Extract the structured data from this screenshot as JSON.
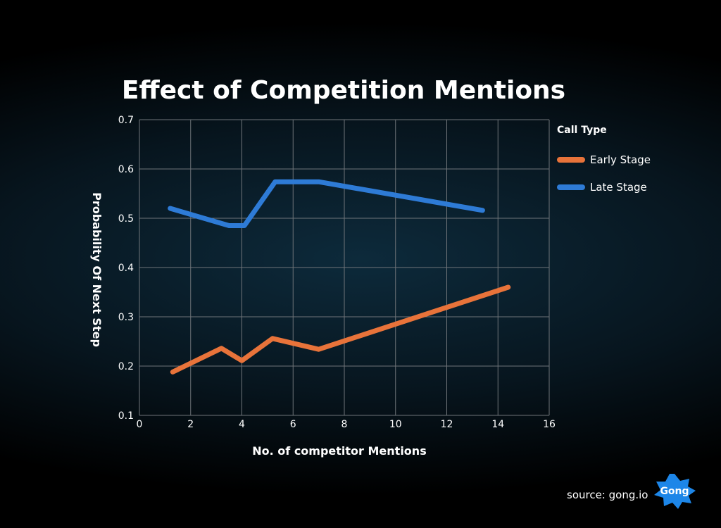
{
  "chart_data": {
    "type": "line",
    "title": "Effect of Competition Mentions",
    "xlabel": "No. of competitor Mentions",
    "ylabel": "Probability Of Next  Step",
    "xlim": [
      0,
      16
    ],
    "ylim": [
      0.1,
      0.7
    ],
    "xticks": [
      0,
      2,
      4,
      6,
      8,
      10,
      12,
      14,
      16
    ],
    "yticks": [
      0.1,
      0.2,
      0.3,
      0.4,
      0.5,
      0.6,
      0.7
    ],
    "grid": true,
    "legend": {
      "title": "Call Type",
      "placement": "right"
    },
    "series": [
      {
        "name": "Early Stage",
        "color": "#e8733a",
        "points": [
          {
            "x": 1.3,
            "y": 0.188
          },
          {
            "x": 3.2,
            "y": 0.236
          },
          {
            "x": 4.0,
            "y": 0.211
          },
          {
            "x": 5.2,
            "y": 0.256
          },
          {
            "x": 7.0,
            "y": 0.234
          },
          {
            "x": 14.4,
            "y": 0.36
          }
        ]
      },
      {
        "name": "Late Stage",
        "color": "#2e7bd6",
        "points": [
          {
            "x": 1.2,
            "y": 0.52
          },
          {
            "x": 3.5,
            "y": 0.485
          },
          {
            "x": 4.1,
            "y": 0.485
          },
          {
            "x": 5.3,
            "y": 0.574
          },
          {
            "x": 7.0,
            "y": 0.574
          },
          {
            "x": 13.4,
            "y": 0.516
          }
        ]
      }
    ]
  },
  "footer": {
    "source": "source: gong.io",
    "logo_text": "Gong",
    "logo_color": "#1d86e8"
  }
}
